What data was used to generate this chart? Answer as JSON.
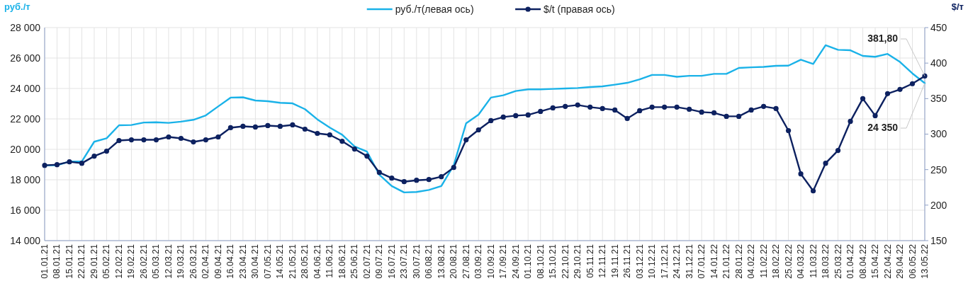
{
  "chart_data": {
    "type": "line",
    "ylabel": "руб./т",
    "y2label": "$/т",
    "categories": [
      "01.01.21",
      "08.01.21",
      "15.01.21",
      "22.01.21",
      "29.01.21",
      "05.02.21",
      "12.02.21",
      "19.02.21",
      "26.02.21",
      "05.03.21",
      "12.03.21",
      "19.03.21",
      "26.03.21",
      "02.04.21",
      "09.04.21",
      "16.04.21",
      "23.04.21",
      "30.04.21",
      "07.05.21",
      "14.05.21",
      "21.05.21",
      "28.05.21",
      "04.06.21",
      "11.06.21",
      "18.06.21",
      "25.06.21",
      "02.07.21",
      "09.07.21",
      "16.07.21",
      "23.07.21",
      "30.07.21",
      "06.08.21",
      "13.08.21",
      "20.08.21",
      "27.08.21",
      "03.09.21",
      "10.09.21",
      "17.09.21",
      "24.09.21",
      "01.10.21",
      "08.10.21",
      "15.10.21",
      "22.10.21",
      "29.10.21",
      "05.11.21",
      "12.11.21",
      "19.11.21",
      "26.11.21",
      "03.12.21",
      "10.12.21",
      "17.12.21",
      "24.12.21",
      "31.12.21",
      "07.01.22",
      "14.01.22",
      "21.01.22",
      "28.01.22",
      "04.02.22",
      "11.02.22",
      "18.02.22",
      "25.02.22",
      "04.03.22",
      "11.03.22",
      "18.03.22",
      "25.03.22",
      "01.04.22",
      "08.04.22",
      "15.04.22",
      "22.04.22",
      "29.04.22",
      "06.05.22",
      "13.05.22"
    ],
    "series": [
      {
        "name": "руб./т(левая ось)",
        "color": "#1ab2e8",
        "marker": "none",
        "values": [
          18950,
          18950,
          19200,
          19200,
          20500,
          20730,
          21580,
          21600,
          21760,
          21780,
          21740,
          21820,
          21940,
          22230,
          22820,
          23400,
          23420,
          23210,
          23160,
          23060,
          23020,
          22640,
          21970,
          21430,
          20960,
          20190,
          19850,
          18330,
          17590,
          17170,
          17200,
          17330,
          17590,
          18950,
          21710,
          22280,
          23400,
          23550,
          23830,
          23940,
          23940,
          23970,
          24000,
          24030,
          24090,
          24140,
          24250,
          24370,
          24600,
          24890,
          24890,
          24770,
          24830,
          24830,
          24960,
          24960,
          25350,
          25390,
          25420,
          25490,
          25500,
          25890,
          25610,
          26840,
          26540,
          26510,
          26140,
          26080,
          26270,
          25740,
          24990,
          24350
        ],
        "value_labels": [
          null,
          null,
          null,
          null,
          null,
          null,
          null,
          null,
          null,
          null,
          null,
          null,
          null,
          null,
          null,
          null,
          null,
          null,
          null,
          null,
          null,
          null,
          null,
          null,
          null,
          null,
          null,
          null,
          null,
          null,
          null,
          null,
          null,
          null,
          null,
          null,
          null,
          null,
          null,
          null,
          null,
          null,
          null,
          null,
          null,
          null,
          null,
          null,
          null,
          null,
          null,
          null,
          null,
          null,
          null,
          null,
          null,
          null,
          null,
          null,
          null,
          null,
          null,
          null,
          null,
          null,
          null,
          null,
          null,
          null,
          null,
          "24 350"
        ]
      },
      {
        "name": "$/t (правая ось)",
        "color": "#0d2160",
        "marker": "circle",
        "axis": "y2",
        "values": [
          256,
          257,
          261,
          259,
          269,
          276,
          291,
          292,
          292,
          292,
          296,
          294,
          289,
          292,
          296,
          309,
          311,
          310,
          312,
          311,
          313,
          307,
          301,
          299,
          290,
          279,
          269,
          246,
          238,
          233,
          235,
          236,
          240,
          253,
          292,
          306,
          319,
          324,
          326,
          327,
          332,
          337,
          339,
          341,
          338,
          336,
          334,
          322,
          333,
          338,
          338,
          338,
          335,
          331,
          330,
          325,
          325,
          334,
          339,
          336,
          305,
          244,
          220,
          259,
          277,
          318,
          350,
          326,
          357,
          363,
          371,
          381.8
        ],
        "value_labels": [
          null,
          null,
          null,
          null,
          null,
          null,
          null,
          null,
          null,
          null,
          null,
          null,
          null,
          null,
          null,
          null,
          null,
          null,
          null,
          null,
          null,
          null,
          null,
          null,
          null,
          null,
          null,
          null,
          null,
          null,
          null,
          null,
          null,
          null,
          null,
          null,
          null,
          null,
          null,
          null,
          null,
          null,
          null,
          null,
          null,
          null,
          null,
          null,
          null,
          null,
          null,
          null,
          null,
          null,
          null,
          null,
          null,
          null,
          null,
          null,
          null,
          null,
          null,
          null,
          null,
          null,
          null,
          null,
          null,
          null,
          null,
          "381,80"
        ]
      }
    ],
    "ylim": [
      14000,
      28000
    ],
    "yticks": [
      {
        "value": 14000,
        "label": "14 000"
      },
      {
        "value": 16000,
        "label": "16 000"
      },
      {
        "value": 18000,
        "label": "18 000"
      },
      {
        "value": 20000,
        "label": "20 000"
      },
      {
        "value": 22000,
        "label": "22 000"
      },
      {
        "value": 24000,
        "label": "24 000"
      },
      {
        "value": 26000,
        "label": "26 000"
      },
      {
        "value": 28000,
        "label": "28 000"
      }
    ],
    "y2lim": [
      150,
      450
    ],
    "y2ticks": [
      150,
      200,
      250,
      300,
      350,
      400,
      450
    ],
    "grid": true,
    "legend": "top"
  }
}
